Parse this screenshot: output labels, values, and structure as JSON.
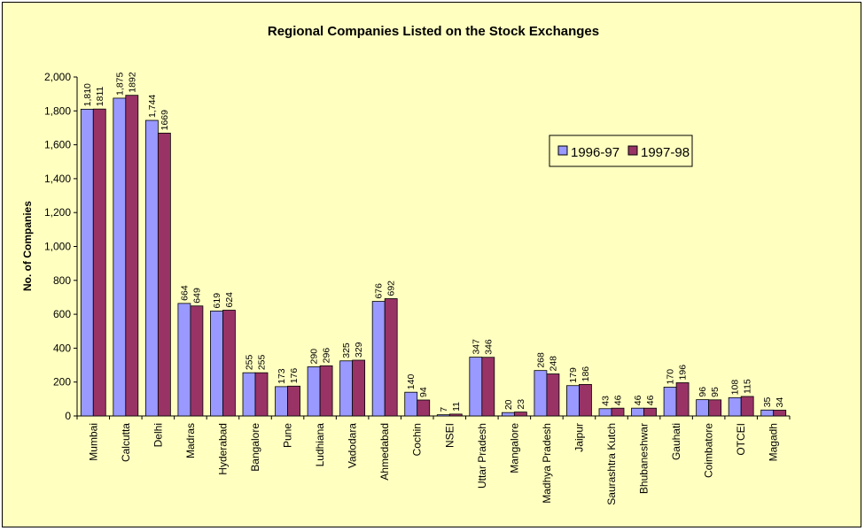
{
  "chart_data": {
    "type": "bar",
    "title": "Regional Companies Listed on the Stock Exchanges",
    "ylabel": "No. of Companies",
    "xlabel": "",
    "ylim": [
      0,
      2000
    ],
    "yticks": [
      0,
      200,
      400,
      600,
      800,
      1000,
      1200,
      1400,
      1600,
      1800,
      2000
    ],
    "ytick_labels": [
      "0",
      "200",
      "400",
      "600",
      "800",
      "1,000",
      "1,200",
      "1,400",
      "1,600",
      "1,800",
      "2,000"
    ],
    "grid": false,
    "legend": "right",
    "categories": [
      "Mumbai",
      "Calcutta",
      "Delhi",
      "Madras",
      "Hyderabad",
      "Bangalore",
      "Pune",
      "Ludhiana",
      "Vadodara",
      "Ahmedabad",
      "Cochin",
      "NSEI",
      "Uttar Pradesh",
      "Mangalore",
      "Madhya Pradesh",
      "Jaipur",
      "Saurashtra Kutch",
      "Bhubaneshwar",
      "Gauhati",
      "Coimbatore",
      "OTCEI",
      "Magadh"
    ],
    "series": [
      {
        "name": "1996-97",
        "color": "#9999ff",
        "values": [
          1810,
          1875,
          1744,
          664,
          619,
          255,
          173,
          290,
          325,
          676,
          140,
          7,
          347,
          20,
          268,
          179,
          43,
          46,
          170,
          96,
          108,
          35
        ],
        "labels": [
          "1,810",
          "1,875",
          "1,744",
          "664",
          "619",
          "255",
          "173",
          "290",
          "325",
          "676",
          "140",
          "7",
          "347",
          "20",
          "268",
          "179",
          "43",
          "46",
          "170",
          "96",
          "108",
          "35"
        ]
      },
      {
        "name": "1997-98",
        "color": "#993366",
        "values": [
          1811,
          1892,
          1669,
          649,
          624,
          255,
          176,
          296,
          329,
          692,
          94,
          11,
          346,
          23,
          248,
          186,
          46,
          46,
          196,
          95,
          115,
          34
        ],
        "labels": [
          "1811",
          "1892",
          "1669",
          "649",
          "624",
          "255",
          "176",
          "296",
          "329",
          "692",
          "94",
          "11",
          "346",
          "23",
          "248",
          "186",
          "46",
          "46",
          "196",
          "95",
          "115",
          "34"
        ]
      }
    ]
  }
}
